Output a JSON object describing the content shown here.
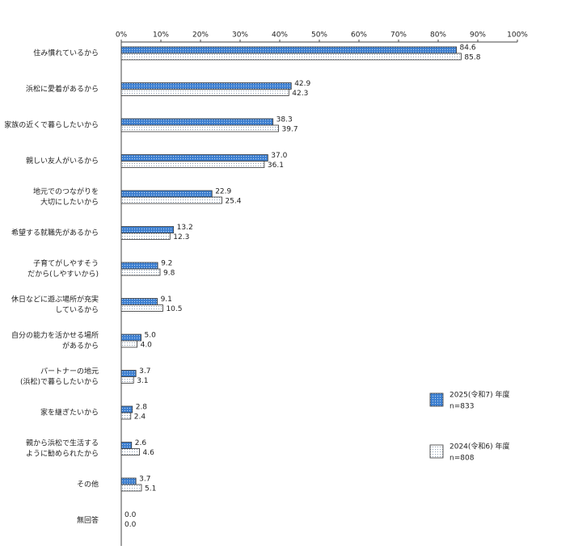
{
  "chart_data": {
    "type": "bar",
    "orientation": "horizontal",
    "categories": [
      [
        "住み慣れているから"
      ],
      [
        "浜松に愛着があるから"
      ],
      [
        "家族の近くで暮らしたいから"
      ],
      [
        "親しい友人がいるから"
      ],
      [
        "地元でのつながりを",
        "大切にしたいから"
      ],
      [
        "希望する就職先があるから"
      ],
      [
        "子育てがしやすそう",
        "だから(しやすいから)"
      ],
      [
        "休日などに遊ぶ場所が充実",
        "しているから"
      ],
      [
        "自分の能力を活かせる場所",
        "があるから"
      ],
      [
        "パートナーの地元",
        "(浜松)で暮らしたいから"
      ],
      [
        "家を継ぎたいから"
      ],
      [
        "親から浜松で生活する",
        "ように勧められたから"
      ],
      [
        "その他"
      ],
      [
        "無回答"
      ]
    ],
    "series": [
      {
        "name": "2025(令和7) 年度",
        "sample_size": "n=833",
        "color": "#3d7fd0",
        "values": [
          84.6,
          42.9,
          38.3,
          37.0,
          22.9,
          13.2,
          9.2,
          9.1,
          5.0,
          3.7,
          2.8,
          2.6,
          3.7,
          0.0
        ],
        "value_labels": [
          "84.6",
          "42.9",
          "38.3",
          "37.0",
          "22.9",
          "13.2",
          "9.2",
          "9.1",
          "5.0",
          "3.7",
          "2.8",
          "2.6",
          "3.7",
          "0.0"
        ]
      },
      {
        "name": "2024(令和6) 年度",
        "sample_size": "n=808",
        "color": "#ffffff",
        "values": [
          85.8,
          42.3,
          39.7,
          36.1,
          25.4,
          12.3,
          9.8,
          10.5,
          4.0,
          3.1,
          2.4,
          4.6,
          5.1,
          0.0
        ],
        "value_labels": [
          "85.8",
          "42.3",
          "39.7",
          "36.1",
          "25.4",
          "12.3",
          "9.8",
          "10.5",
          "4.0",
          "3.1",
          "2.4",
          "4.6",
          "5.1",
          "0.0"
        ]
      }
    ],
    "xlim": [
      0,
      100
    ],
    "xticks": [
      {
        "value": 0,
        "label": "0%"
      },
      {
        "value": 10,
        "label": "10%"
      },
      {
        "value": 20,
        "label": "20%"
      },
      {
        "value": 30,
        "label": "30%"
      },
      {
        "value": 40,
        "label": "40%"
      },
      {
        "value": 50,
        "label": "50%"
      },
      {
        "value": 60,
        "label": "60%"
      },
      {
        "value": 70,
        "label": "70%"
      },
      {
        "value": 80,
        "label": "80%"
      },
      {
        "value": 90,
        "label": "90%"
      },
      {
        "value": 100,
        "label": "100%"
      }
    ]
  }
}
